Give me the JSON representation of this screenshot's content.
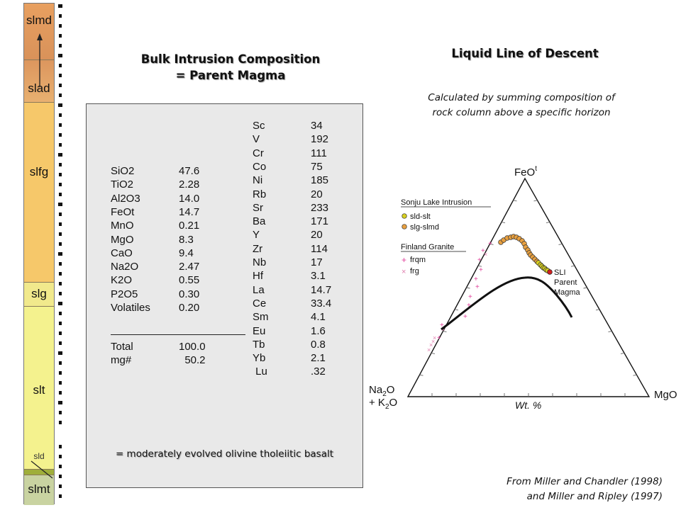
{
  "column": {
    "units": [
      "slmd",
      "slad",
      "slfg",
      "slg",
      "slt",
      "sld",
      "slmt"
    ]
  },
  "heading_left": {
    "line1": "Bulk Intrusion Composition",
    "line2": "= Parent Magma"
  },
  "heading_right": {
    "title": "Liquid Line of Descent",
    "note_line1": "Calculated by summing composition of",
    "note_line2": "rock column above a specific horizon"
  },
  "major_oxides": [
    {
      "label": "SiO2",
      "value": "47.6"
    },
    {
      "label": "TiO2",
      "value": "2.28"
    },
    {
      "label": "Al2O3",
      "value": "14.0"
    },
    {
      "label": "FeOt",
      "value": "14.7"
    },
    {
      "label": "MnO",
      "value": "0.21"
    },
    {
      "label": "MgO",
      "value": "8.3"
    },
    {
      "label": "CaO",
      "value": "9.4"
    },
    {
      "label": "Na2O",
      "value": "2.47"
    },
    {
      "label": "K2O",
      "value": "0.55"
    },
    {
      "label": "P2O5",
      "value": "0.30"
    },
    {
      "label": "Volatiles",
      "value": "0.20"
    }
  ],
  "totals": [
    {
      "label": "Total",
      "value": "100.0"
    },
    {
      "label": "mg#",
      "value": "  50.2"
    }
  ],
  "trace_elements": [
    {
      "label": "Sc",
      "value": "34"
    },
    {
      "label": "V",
      "value": "192"
    },
    {
      "label": "Cr",
      "value": "111"
    },
    {
      "label": "Co",
      "value": "75"
    },
    {
      "label": "Ni",
      "value": "185"
    },
    {
      "label": "Rb",
      "value": "20"
    },
    {
      "label": "Sr",
      "value": "233"
    },
    {
      "label": "Ba",
      "value": "171"
    },
    {
      "label": "Y",
      "value": "20"
    },
    {
      "label": "Zr",
      "value": "114"
    },
    {
      "label": "Nb",
      "value": "17"
    },
    {
      "label": "Hf",
      "value": "3.1"
    },
    {
      "label": "La",
      "value": "14.7"
    },
    {
      "label": "Ce",
      "value": "33.4"
    },
    {
      "label": "Sm",
      "value": "4.1"
    },
    {
      "label": "Eu",
      "value": "1.6"
    },
    {
      "label": "Tb",
      "value": "0.8"
    },
    {
      "label": "Yb",
      "value": "2.1"
    },
    {
      "label": " Lu",
      "value": ".32"
    }
  ],
  "summary": "= moderately evolved olivine tholeiitic basalt",
  "diagram": {
    "apex_top": "FeO",
    "apex_top_sup": "t",
    "apex_left_line1": "Na",
    "apex_left_sub1": "2",
    "apex_left_line1b": "O",
    "apex_left_line2": "+ K",
    "apex_left_sub2": "2",
    "apex_left_line2b": "O",
    "apex_right": "MgO",
    "axis_label": "Wt. %",
    "legend_group1": "Sonju Lake Intrusion",
    "legend_item1": "sld-slt",
    "legend_item2": "slg-slmd",
    "legend_group2": "Finland Granite",
    "legend_item3": "frqm",
    "legend_item4": "frg",
    "parent_label_line1": "SLI",
    "parent_label_line2": "Parent",
    "parent_label_line3": "Magma",
    "colors": {
      "sld_slt": "#d8d020",
      "slg_slmd": "#e8a040",
      "granite": "#e0409a",
      "parent": "#d02020"
    }
  },
  "citation": {
    "line1": "From Miller and Chandler (1998)",
    "line2": "and Miller and Ripley (1997)"
  }
}
